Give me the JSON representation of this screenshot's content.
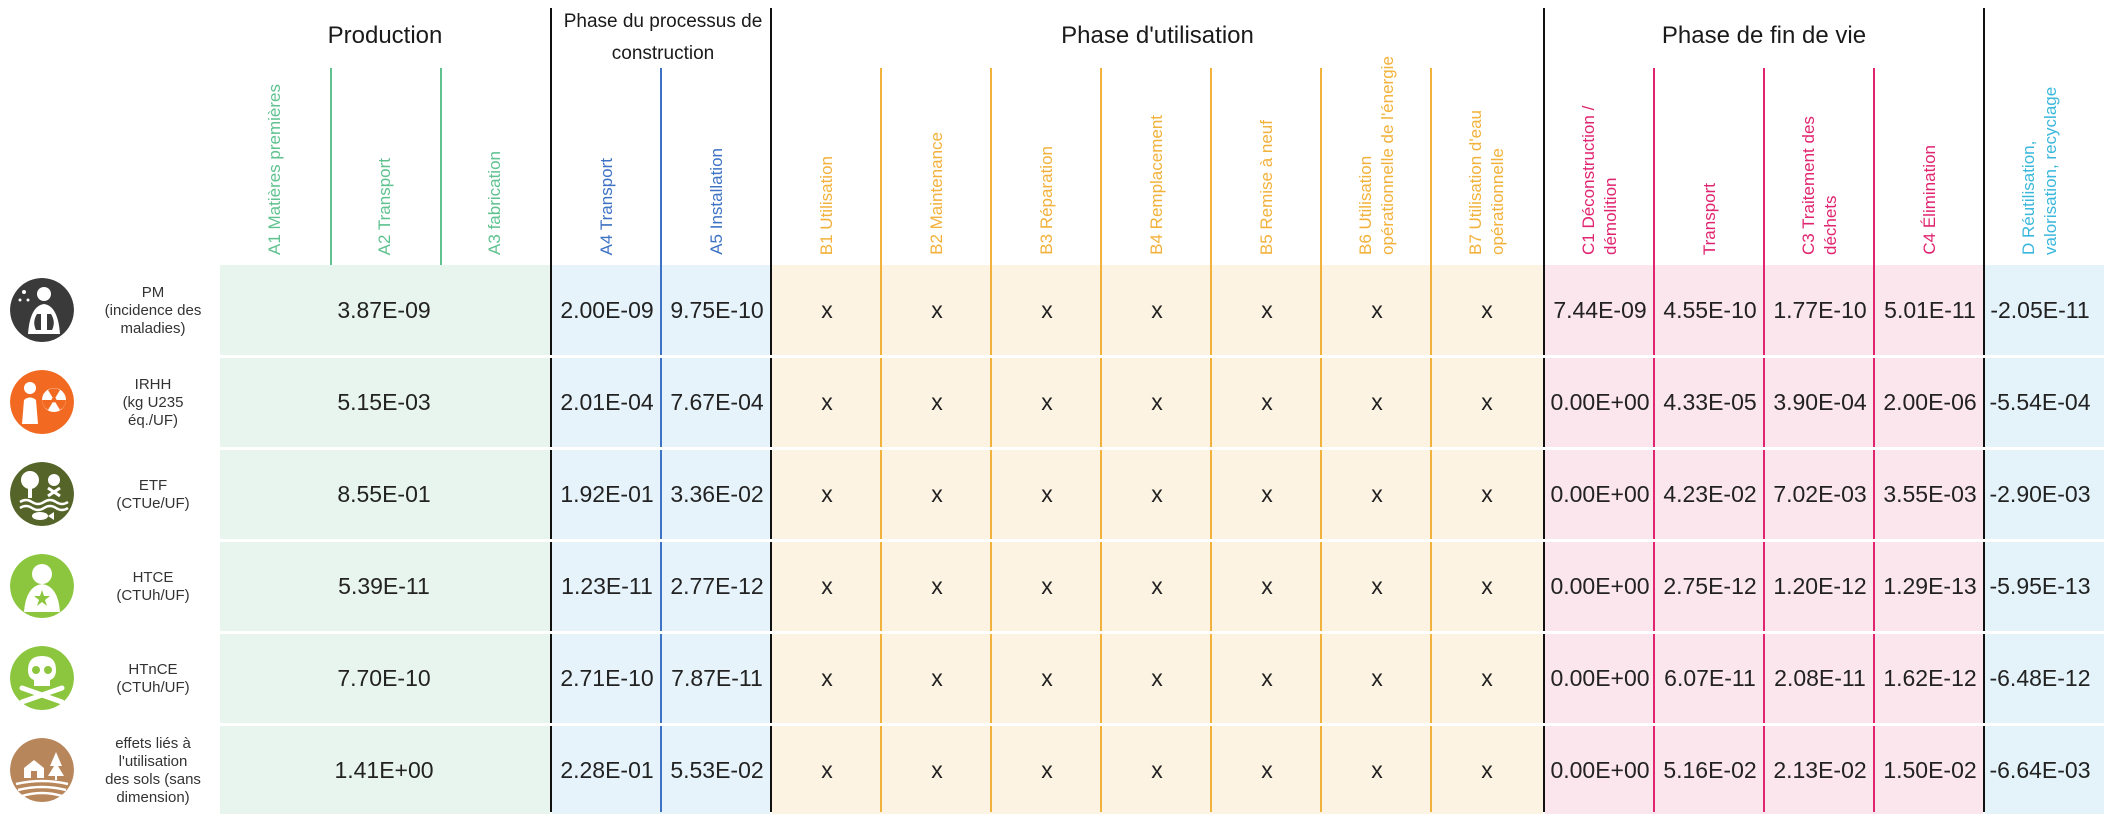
{
  "groups": {
    "production": "Production",
    "construction": "Phase du processus de construction",
    "utilisation": "Phase d'utilisation",
    "fin_de_vie": "Phase de fin de vie"
  },
  "columns": [
    {
      "id": "A1",
      "label": "A1 Matières premières",
      "color": "#5fc28f"
    },
    {
      "id": "A2",
      "label": "A2 Transport",
      "color": "#5fc28f"
    },
    {
      "id": "A3",
      "label": "A3 fabrication",
      "color": "#5fc28f"
    },
    {
      "id": "A4",
      "label": "A4 Transport",
      "color": "#3d72c4"
    },
    {
      "id": "A5",
      "label": "A5 Installation",
      "color": "#3d72c4"
    },
    {
      "id": "B1",
      "label": "B1 Utilisation",
      "color": "#f2b13a"
    },
    {
      "id": "B2",
      "label": "B2 Maintenance",
      "color": "#f2b13a"
    },
    {
      "id": "B3",
      "label": "B3 Réparation",
      "color": "#f2b13a"
    },
    {
      "id": "B4",
      "label": "B4 Remplacement",
      "color": "#f2b13a"
    },
    {
      "id": "B5",
      "label": "B5 Remise à neuf",
      "color": "#f2b13a"
    },
    {
      "id": "B6",
      "label": "B6 Utilisation opérationnelle de l'énergie",
      "color": "#f2b13a"
    },
    {
      "id": "B7",
      "label": "B7 Utilisation d'eau opérationnelle",
      "color": "#f2b13a"
    },
    {
      "id": "C1",
      "label": "C1 Déconstruction / démolition",
      "color": "#e0246f"
    },
    {
      "id": "C2",
      "label": "Transport",
      "color": "#e0246f"
    },
    {
      "id": "C3",
      "label": "C3 Traitement des déchets",
      "color": "#e0246f"
    },
    {
      "id": "C4",
      "label": "C4 Élimination",
      "color": "#e0246f"
    },
    {
      "id": "D",
      "label": "D Réutilisation, valorisation, recyclage",
      "color": "#3ab7dc"
    }
  ],
  "colors": {
    "production_bg": "#e8f5ee",
    "construction_bg": "#e6f3fa",
    "utilisation_bg": "#fdf3e2",
    "fin_de_vie_bg": "#fae6ec",
    "d_bg": "#e3f3f9",
    "black_divider": "#111111",
    "blue_divider": "#3d72c4",
    "green_divider": "#5fc28f",
    "orange_divider": "#f2b13a",
    "pink_divider": "#e0246f"
  },
  "rows": [
    {
      "indicator": "PM\n(incidence des\nmaladies)",
      "icon": "lungs-person-icon",
      "icon_color": "#3a3a3a",
      "production": "3.87E-09",
      "values": [
        "2.00E-09",
        "9.75E-10",
        "x",
        "x",
        "x",
        "x",
        "x",
        "x",
        "x",
        "7.44E-09",
        "4.55E-10",
        "1.77E-10",
        "5.01E-11",
        "-2.05E-11"
      ]
    },
    {
      "indicator": "IRHH\n(kg U235\néq./UF)",
      "icon": "radiation-person-icon",
      "icon_color": "#f26a21",
      "production": "5.15E-03",
      "values": [
        "2.01E-04",
        "7.67E-04",
        "x",
        "x",
        "x",
        "x",
        "x",
        "x",
        "x",
        "0.00E+00",
        "4.33E-05",
        "3.90E-04",
        "2.00E-06",
        "-5.54E-04"
      ]
    },
    {
      "indicator": "ETF\n(CTUe/UF)",
      "icon": "ecotoxicity-tree-fish-icon",
      "icon_color": "#55652a",
      "production": "8.55E-01",
      "values": [
        "1.92E-01",
        "3.36E-02",
        "x",
        "x",
        "x",
        "x",
        "x",
        "x",
        "x",
        "0.00E+00",
        "4.23E-02",
        "7.02E-03",
        "3.55E-03",
        "-2.90E-03"
      ]
    },
    {
      "indicator": "HTCE\n(CTUh/UF)",
      "icon": "person-cancer-icon",
      "icon_color": "#8cc63f",
      "production": "5.39E-11",
      "values": [
        "1.23E-11",
        "2.77E-12",
        "x",
        "x",
        "x",
        "x",
        "x",
        "x",
        "x",
        "0.00E+00",
        "2.75E-12",
        "1.20E-12",
        "1.29E-13",
        "-5.95E-13"
      ]
    },
    {
      "indicator": "HTnCE\n(CTUh/UF)",
      "icon": "skull-crossbones-icon",
      "icon_color": "#8cc63f",
      "production": "7.70E-10",
      "values": [
        "2.71E-10",
        "7.87E-11",
        "x",
        "x",
        "x",
        "x",
        "x",
        "x",
        "x",
        "0.00E+00",
        "6.07E-11",
        "2.08E-11",
        "1.62E-12",
        "-6.48E-12"
      ]
    },
    {
      "indicator": "effets liés à\nl'utilisation\ndes sols (sans\ndimension)",
      "icon": "land-use-house-tree-icon",
      "icon_color": "#b8865b",
      "production": "1.41E+00",
      "values": [
        "2.28E-01",
        "5.53E-02",
        "x",
        "x",
        "x",
        "x",
        "x",
        "x",
        "x",
        "0.00E+00",
        "5.16E-02",
        "2.13E-02",
        "1.50E-02",
        "-6.64E-03"
      ]
    }
  ]
}
